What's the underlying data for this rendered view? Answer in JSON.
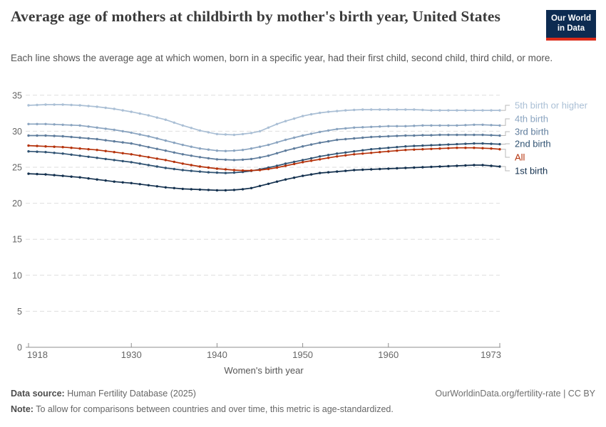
{
  "header": {
    "title": "Average age of mothers at childbirth by mother's birth year, United States",
    "subtitle": "Each line shows the average age at which women, born in a specific year, had their first child, second child, third child, or more.",
    "logo_line1": "Our World",
    "logo_line2": "in Data"
  },
  "footer": {
    "source_label": "Data source:",
    "source_value": "Human Fertility Database (2025)",
    "link": "OurWorldinData.org/fertility-rate | CC BY",
    "note_label": "Note:",
    "note_value": "To allow for comparisons between countries and over time, this metric is age-standardized."
  },
  "chart_data": {
    "type": "line",
    "title": "Average age of mothers at childbirth by mother's birth year, United States",
    "xlabel": "Women's birth year",
    "ylabel": "",
    "ylim": [
      0,
      35
    ],
    "yticks": [
      0,
      5,
      10,
      15,
      20,
      25,
      30,
      35
    ],
    "xticks": [
      1918,
      1930,
      1940,
      1950,
      1960,
      1973
    ],
    "grid": "dashed-horizontal",
    "legend_position": "right",
    "colors": {
      "axis": "#8f8f8f",
      "gridline": "#dedede",
      "tick_label": "#666666",
      "axis_title": "#555555",
      "legend_connector": "#b8b8b8"
    },
    "x": [
      1918,
      1919,
      1920,
      1921,
      1922,
      1923,
      1924,
      1925,
      1926,
      1927,
      1928,
      1929,
      1930,
      1931,
      1932,
      1933,
      1934,
      1935,
      1936,
      1937,
      1938,
      1939,
      1940,
      1941,
      1942,
      1943,
      1944,
      1945,
      1946,
      1947,
      1948,
      1949,
      1950,
      1951,
      1952,
      1953,
      1954,
      1955,
      1956,
      1957,
      1958,
      1959,
      1960,
      1961,
      1962,
      1963,
      1964,
      1965,
      1966,
      1967,
      1968,
      1969,
      1970,
      1971,
      1972,
      1973
    ],
    "series": [
      {
        "name": "5th birth or higher",
        "label": "5th birth or higher",
        "color": "#aabfd5",
        "values": [
          33.6,
          33.65,
          33.7,
          33.7,
          33.7,
          33.65,
          33.6,
          33.5,
          33.4,
          33.25,
          33.1,
          32.9,
          32.7,
          32.45,
          32.2,
          31.9,
          31.6,
          31.2,
          30.8,
          30.45,
          30.1,
          29.85,
          29.6,
          29.55,
          29.5,
          29.6,
          29.75,
          30.0,
          30.5,
          31.0,
          31.4,
          31.75,
          32.1,
          32.35,
          32.55,
          32.7,
          32.8,
          32.9,
          32.95,
          33.0,
          33.0,
          33.0,
          33.0,
          33.0,
          33.0,
          33.0,
          32.95,
          32.9,
          32.9,
          32.9,
          32.9,
          32.9,
          32.9,
          32.9,
          32.9,
          32.9
        ]
      },
      {
        "name": "4th birth",
        "label": "4th birth",
        "color": "#8aa4c0",
        "values": [
          31.0,
          31.0,
          31.0,
          30.95,
          30.9,
          30.85,
          30.8,
          30.65,
          30.5,
          30.35,
          30.2,
          30.0,
          29.8,
          29.55,
          29.3,
          29.0,
          28.7,
          28.4,
          28.1,
          27.85,
          27.6,
          27.45,
          27.3,
          27.25,
          27.3,
          27.4,
          27.6,
          27.85,
          28.1,
          28.45,
          28.8,
          29.1,
          29.4,
          29.65,
          29.9,
          30.1,
          30.3,
          30.4,
          30.5,
          30.55,
          30.6,
          30.65,
          30.7,
          30.7,
          30.7,
          30.75,
          30.8,
          30.8,
          30.8,
          30.8,
          30.8,
          30.85,
          30.9,
          30.9,
          30.85,
          30.8
        ]
      },
      {
        "name": "3rd birth",
        "label": "3rd birth",
        "color": "#5e7c9c",
        "values": [
          29.4,
          29.4,
          29.4,
          29.35,
          29.3,
          29.2,
          29.1,
          29.0,
          28.9,
          28.75,
          28.6,
          28.45,
          28.3,
          28.05,
          27.8,
          27.55,
          27.3,
          27.05,
          26.8,
          26.6,
          26.4,
          26.25,
          26.1,
          26.05,
          26.0,
          26.05,
          26.15,
          26.35,
          26.6,
          26.95,
          27.3,
          27.6,
          27.9,
          28.15,
          28.4,
          28.6,
          28.8,
          28.9,
          29.0,
          29.1,
          29.2,
          29.25,
          29.3,
          29.35,
          29.4,
          29.4,
          29.45,
          29.45,
          29.5,
          29.5,
          29.5,
          29.5,
          29.5,
          29.5,
          29.45,
          29.4
        ]
      },
      {
        "name": "2nd birth",
        "label": "2nd birth",
        "color": "#2f5272",
        "values": [
          27.2,
          27.15,
          27.1,
          27.0,
          26.9,
          26.75,
          26.6,
          26.45,
          26.3,
          26.15,
          26.0,
          25.85,
          25.7,
          25.5,
          25.3,
          25.1,
          24.9,
          24.75,
          24.6,
          24.5,
          24.4,
          24.3,
          24.25,
          24.2,
          24.25,
          24.35,
          24.5,
          24.7,
          24.95,
          25.2,
          25.5,
          25.75,
          26.0,
          26.25,
          26.5,
          26.7,
          26.9,
          27.05,
          27.2,
          27.35,
          27.5,
          27.6,
          27.7,
          27.8,
          27.9,
          27.95,
          28.0,
          28.05,
          28.1,
          28.15,
          28.2,
          28.25,
          28.3,
          28.3,
          28.25,
          28.2
        ]
      },
      {
        "name": "All",
        "label": "All",
        "color": "#b5320b",
        "values": [
          28.0,
          27.95,
          27.9,
          27.85,
          27.8,
          27.7,
          27.6,
          27.5,
          27.4,
          27.25,
          27.1,
          26.95,
          26.8,
          26.6,
          26.4,
          26.2,
          26.0,
          25.75,
          25.5,
          25.3,
          25.1,
          24.95,
          24.8,
          24.7,
          24.6,
          24.55,
          24.55,
          24.6,
          24.75,
          24.95,
          25.2,
          25.45,
          25.7,
          25.9,
          26.1,
          26.3,
          26.5,
          26.65,
          26.8,
          26.9,
          27.0,
          27.1,
          27.2,
          27.3,
          27.4,
          27.45,
          27.5,
          27.55,
          27.6,
          27.65,
          27.7,
          27.7,
          27.7,
          27.65,
          27.6,
          27.5
        ]
      },
      {
        "name": "1st birth",
        "label": "1st birth",
        "color": "#13304e",
        "values": [
          24.1,
          24.05,
          24.0,
          23.9,
          23.8,
          23.7,
          23.6,
          23.45,
          23.3,
          23.15,
          23.0,
          22.9,
          22.8,
          22.65,
          22.5,
          22.35,
          22.2,
          22.1,
          22.0,
          21.95,
          21.9,
          21.85,
          21.8,
          21.8,
          21.85,
          21.95,
          22.1,
          22.4,
          22.7,
          23.0,
          23.3,
          23.55,
          23.8,
          24.0,
          24.2,
          24.3,
          24.4,
          24.5,
          24.6,
          24.65,
          24.7,
          24.75,
          24.8,
          24.85,
          24.9,
          24.95,
          25.0,
          25.05,
          25.1,
          25.15,
          25.2,
          25.25,
          25.3,
          25.3,
          25.2,
          25.1
        ]
      }
    ]
  }
}
